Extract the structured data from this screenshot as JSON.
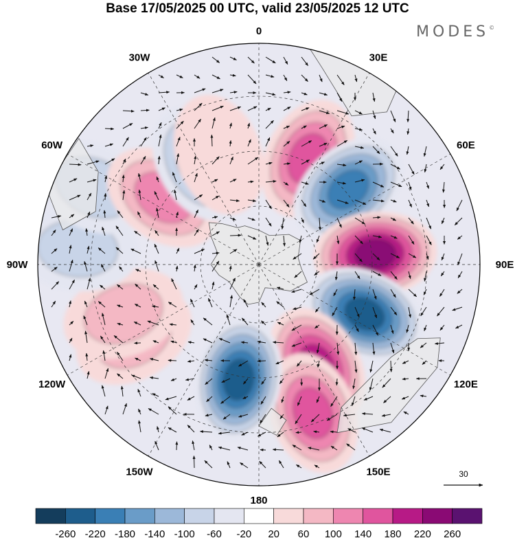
{
  "title": "Base 17/05/2025 00 UTC, valid 23/05/2025 12 UTC",
  "brand": "MODES",
  "brand_mark": "©",
  "map": {
    "projection": "polar-stereographic-south",
    "longitude_labels": [
      "0",
      "30E",
      "60E",
      "90E",
      "120E",
      "150E",
      "180",
      "150W",
      "120W",
      "90W",
      "60W",
      "30W"
    ],
    "vector_reference": "30",
    "colors": {
      "land_shade": "#e9e9e9",
      "coast": "#555555",
      "grid": "#333333",
      "arrow": "#111111"
    },
    "anomaly_centers": [
      {
        "lon_deg": 25,
        "value": 180
      },
      {
        "lon_deg": 50,
        "value": -220
      },
      {
        "lon_deg": 85,
        "value": 260
      },
      {
        "lon_deg": 115,
        "value": -260
      },
      {
        "lon_deg": 150,
        "value": 220
      },
      {
        "lon_deg": 160,
        "value": 180
      },
      {
        "lon_deg": 190,
        "value": -260
      },
      {
        "lon_deg": 240,
        "value": 100
      },
      {
        "lon_deg": 250,
        "value": 100
      },
      {
        "lon_deg": 275,
        "value": -100
      },
      {
        "lon_deg": 295,
        "value": -100
      },
      {
        "lon_deg": 305,
        "value": 140
      },
      {
        "lon_deg": 330,
        "value": -140
      },
      {
        "lon_deg": 340,
        "value": 60
      }
    ]
  },
  "colorbar": {
    "ticks": [
      "-260",
      "-220",
      "-180",
      "-140",
      "-100",
      "-60",
      "-20",
      "20",
      "60",
      "100",
      "140",
      "180",
      "220",
      "260"
    ],
    "colors": [
      "#143d5c",
      "#1e5d8c",
      "#3a7fb5",
      "#6a9cc8",
      "#9cb8d9",
      "#c8d4e8",
      "#e4e6f1",
      "#ffffff",
      "#f8dada",
      "#f4b8c4",
      "#ee86b0",
      "#e0559e",
      "#b71a86",
      "#8a0a74",
      "#5a1270"
    ]
  }
}
